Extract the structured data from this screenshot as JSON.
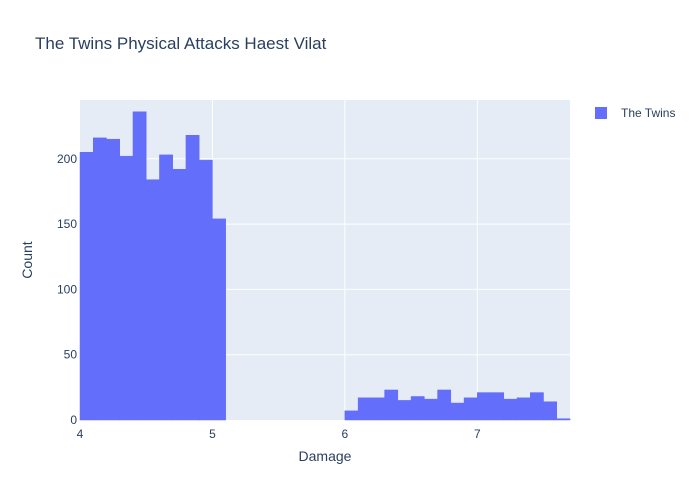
{
  "chart_data": {
    "type": "bar",
    "title": "The Twins Physical Attacks Haest Vilat",
    "xlabel": "Damage",
    "ylabel": "Count",
    "xlim": [
      4,
      7.7
    ],
    "ylim": [
      0,
      245
    ],
    "x_ticks": [
      "4",
      "5",
      "6",
      "7"
    ],
    "y_ticks": [
      "0",
      "50",
      "100",
      "150",
      "200"
    ],
    "x_tick_values": [
      4,
      5,
      6,
      7
    ],
    "y_tick_values": [
      0,
      50,
      100,
      150,
      200
    ],
    "bin_width": 0.1,
    "bin_starts": [
      4.0,
      4.1,
      4.2,
      4.3,
      4.4,
      4.5,
      4.6,
      4.7,
      4.8,
      4.9,
      5.0,
      6.0,
      6.1,
      6.2,
      6.3,
      6.4,
      6.5,
      6.6,
      6.7,
      6.8,
      6.9,
      7.0,
      7.1,
      7.2,
      7.3,
      7.4,
      7.5,
      7.6
    ],
    "series": [
      {
        "name": "The Twins",
        "values": [
          205,
          216,
          215,
          202,
          236,
          184,
          203,
          192,
          218,
          199,
          154,
          7,
          17,
          17,
          23,
          15,
          18,
          16,
          23,
          13,
          17,
          21,
          21,
          16,
          17,
          21,
          14,
          1
        ]
      }
    ],
    "colors": {
      "bar": "#636efa",
      "plot_bg": "#e5ecf6",
      "grid": "#ffffff",
      "text": "#2a3f5f"
    },
    "grid": true,
    "legend_position": "top-right"
  }
}
